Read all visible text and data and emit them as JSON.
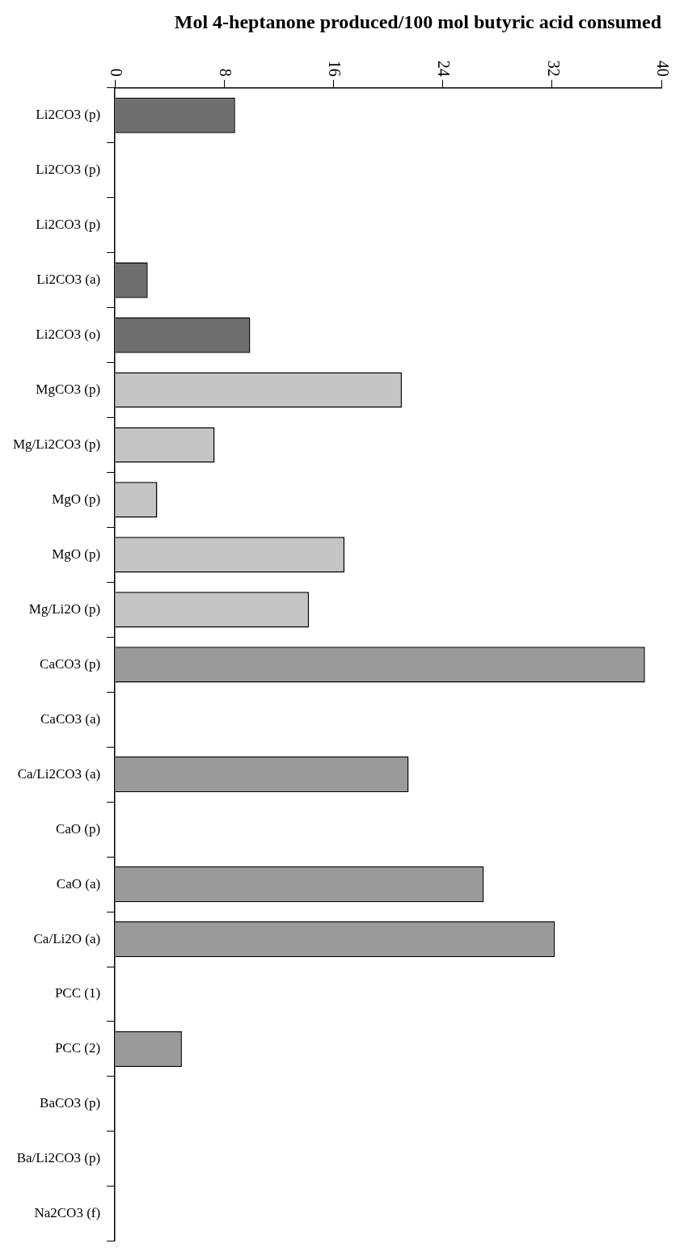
{
  "chart_data": {
    "type": "bar",
    "orientation": "horizontal",
    "title": "Mol 4-heptanone produced/100 mol butyric acid consumed",
    "categories": [
      "Li2CO3 (p)",
      "Li2CO3 (p)",
      "Li2CO3 (p)",
      "Li2CO3 (a)",
      "Li2CO3 (o)",
      "MgCO3 (p)",
      "Mg/Li2CO3 (p)",
      "MgO (p)",
      "MgO (p)",
      "Mg/Li2O (p)",
      "CaCO3 (p)",
      "CaCO3 (a)",
      "Ca/Li2CO3 (a)",
      "CaO (p)",
      "CaO (a)",
      "Ca/Li2O (a)",
      "PCC (1)",
      "PCC (2)",
      "BaCO3 (p)",
      "Ba/Li2CO3 (p)",
      "Na2CO3 (f)"
    ],
    "values": [
      8.8,
      null,
      null,
      2.4,
      9.9,
      21.0,
      7.3,
      3.1,
      16.8,
      14.2,
      38.8,
      null,
      21.5,
      null,
      27.0,
      32.2,
      null,
      4.9,
      null,
      null,
      null
    ],
    "colors": [
      "#6e6e6e",
      "#6e6e6e",
      "#6e6e6e",
      "#6e6e6e",
      "#6e6e6e",
      "#c4c4c4",
      "#c4c4c4",
      "#c4c4c4",
      "#c4c4c4",
      "#c4c4c4",
      "#9a9a9a",
      "#9a9a9a",
      "#9a9a9a",
      "#9a9a9a",
      "#9a9a9a",
      "#9a9a9a",
      "#9a9a9a",
      "#9a9a9a",
      "#9a9a9a",
      "#9a9a9a",
      "#9a9a9a"
    ],
    "xlim": [
      0,
      40
    ],
    "xticks": [
      0,
      8,
      16,
      24,
      32,
      40
    ],
    "grid": false,
    "legend": false
  }
}
